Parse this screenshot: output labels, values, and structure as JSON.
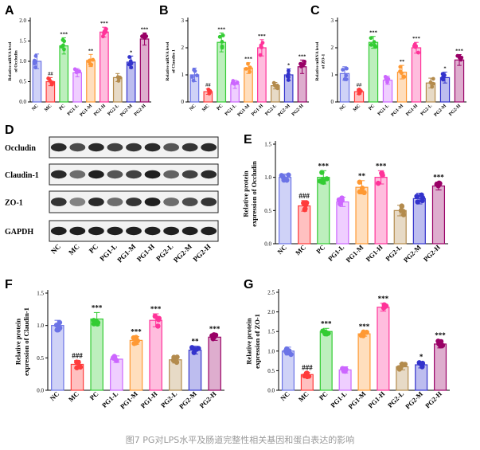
{
  "caption": "图7 PG对LPS水平及肠道完整性相关基因和蛋白表达的影响",
  "groups": [
    "NC",
    "MC",
    "PC",
    "PG1-L",
    "PG1-M",
    "PG1-H",
    "PG2-L",
    "PG2-M",
    "PG2-H"
  ],
  "colors": {
    "NC": "#6b73e6",
    "MC": "#ff3b3b",
    "PC": "#33cc33",
    "PG1-L": "#cc66ff",
    "PG1-M": "#ff9933",
    "PG1-H": "#ff3399",
    "PG2-L": "#b38b4d",
    "PG2-M": "#3333cc",
    "PG2-H": "#990066"
  },
  "western_blot": {
    "letter": "D",
    "bands": [
      "Occludin",
      "Claudin-1",
      "ZO-1",
      "GAPDH"
    ]
  },
  "chart_data": [
    {
      "id": "A",
      "letter": "A",
      "type": "bar",
      "ylabel": "Relative mRNA level of Occludin",
      "ylim": [
        0,
        2.0
      ],
      "yticks": [
        0.0,
        0.5,
        1.0,
        1.5,
        2.0
      ],
      "categories": [
        "NC",
        "MC",
        "PC",
        "PG1-L",
        "PG1-M",
        "PG1-H",
        "PG2-L",
        "PG2-M",
        "PG2-H"
      ],
      "values": [
        1.0,
        0.5,
        1.38,
        0.72,
        1.02,
        1.72,
        0.6,
        0.98,
        1.55
      ],
      "errors": [
        0.18,
        0.1,
        0.2,
        0.1,
        0.15,
        0.12,
        0.1,
        0.15,
        0.15
      ],
      "significance": [
        "",
        "##",
        "***",
        "",
        "**",
        "***",
        "",
        "*",
        "***"
      ]
    },
    {
      "id": "B",
      "letter": "B",
      "type": "bar",
      "ylabel": "Relative mRNA level of Claudin-1",
      "ylim": [
        0,
        3
      ],
      "yticks": [
        0,
        1,
        2,
        3
      ],
      "categories": [
        "NC",
        "MC",
        "PC",
        "PG1-L",
        "PG1-M",
        "PG1-H",
        "PG2-L",
        "PG2-M",
        "PG2-H"
      ],
      "values": [
        1.0,
        0.38,
        2.2,
        0.65,
        1.25,
        2.0,
        0.6,
        1.0,
        1.3
      ],
      "errors": [
        0.25,
        0.1,
        0.35,
        0.15,
        0.2,
        0.3,
        0.12,
        0.22,
        0.25
      ],
      "significance": [
        "",
        "##",
        "***",
        "",
        "***",
        "***",
        "",
        "*",
        "***"
      ]
    },
    {
      "id": "C",
      "letter": "C",
      "type": "bar",
      "ylabel": "Relative mRNA level of ZO-1",
      "ylim": [
        0,
        3
      ],
      "yticks": [
        0,
        1,
        2,
        3
      ],
      "categories": [
        "NC",
        "MC",
        "PC",
        "PG1-L",
        "PG1-M",
        "PG1-H",
        "PG2-L",
        "PG2-M",
        "PG2-H"
      ],
      "values": [
        1.05,
        0.38,
        2.2,
        0.8,
        1.1,
        2.0,
        0.7,
        0.9,
        1.55
      ],
      "errors": [
        0.25,
        0.1,
        0.22,
        0.15,
        0.25,
        0.2,
        0.18,
        0.2,
        0.2
      ],
      "significance": [
        "",
        "##",
        "***",
        "",
        "**",
        "***",
        "",
        "*",
        "***"
      ]
    },
    {
      "id": "E",
      "letter": "E",
      "type": "bar",
      "ylabel": "Relative protein expression of Occludin",
      "ylim": [
        0,
        1.5
      ],
      "yticks": [
        0.0,
        0.5,
        1.0,
        1.5
      ],
      "categories": [
        "NC",
        "MC",
        "PC",
        "PG1-L",
        "PG1-M",
        "PG1-H",
        "PG2-L",
        "PG2-M",
        "PG2-H"
      ],
      "values": [
        1.0,
        0.57,
        1.0,
        0.63,
        0.85,
        1.0,
        0.5,
        0.68,
        0.87
      ],
      "errors": [
        0.05,
        0.08,
        0.1,
        0.07,
        0.1,
        0.1,
        0.08,
        0.08,
        0.06
      ],
      "significance": [
        "",
        "###",
        "***",
        "",
        "**",
        "***",
        "",
        "",
        "***"
      ]
    },
    {
      "id": "F",
      "letter": "F",
      "type": "bar",
      "ylabel": "Relative protein expression of Claudin-1",
      "ylim": [
        0,
        1.5
      ],
      "yticks": [
        0.0,
        0.5,
        1.0,
        1.5
      ],
      "categories": [
        "NC",
        "MC",
        "PC",
        "PG1-L",
        "PG1-M",
        "PG1-H",
        "PG2-L",
        "PG2-M",
        "PG2-H"
      ],
      "values": [
        1.0,
        0.4,
        1.1,
        0.48,
        0.77,
        1.08,
        0.47,
        0.62,
        0.82
      ],
      "errors": [
        0.08,
        0.06,
        0.1,
        0.05,
        0.06,
        0.1,
        0.05,
        0.06,
        0.05
      ],
      "significance": [
        "",
        "###",
        "***",
        "",
        "***",
        "***",
        "",
        "**",
        "***"
      ]
    },
    {
      "id": "G",
      "letter": "G",
      "type": "bar",
      "ylabel": "Relative protein expression of ZO-1",
      "ylim": [
        0,
        2.5
      ],
      "yticks": [
        0.0,
        0.5,
        1.0,
        1.5,
        2.0,
        2.5
      ],
      "categories": [
        "NC",
        "MC",
        "PC",
        "PG1-L",
        "PG1-M",
        "PG1-H",
        "PG2-L",
        "PG2-M",
        "PG2-H"
      ],
      "values": [
        1.0,
        0.4,
        1.5,
        0.52,
        1.44,
        2.12,
        0.6,
        0.65,
        1.18
      ],
      "errors": [
        0.1,
        0.06,
        0.08,
        0.08,
        0.06,
        0.1,
        0.08,
        0.08,
        0.1
      ],
      "significance": [
        "",
        "###",
        "***",
        "",
        "***",
        "***",
        "",
        "*",
        "***"
      ]
    }
  ]
}
